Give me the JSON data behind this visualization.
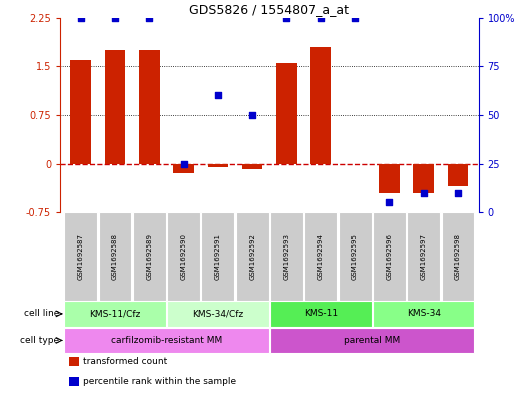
{
  "title": "GDS5826 / 1554807_a_at",
  "samples": [
    "GSM1692587",
    "GSM1692588",
    "GSM1692589",
    "GSM1692590",
    "GSM1692591",
    "GSM1692592",
    "GSM1692593",
    "GSM1692594",
    "GSM1692595",
    "GSM1692596",
    "GSM1692597",
    "GSM1692598"
  ],
  "transformed_count": [
    1.6,
    1.75,
    1.75,
    -0.15,
    -0.05,
    -0.08,
    1.55,
    1.8,
    0.0,
    -0.45,
    -0.45,
    -0.35
  ],
  "percentile_rank": [
    100,
    100,
    100,
    25,
    60,
    50,
    100,
    100,
    100,
    5,
    10,
    10
  ],
  "cell_line_groups": [
    {
      "label": "KMS-11/Cfz",
      "start": 0,
      "end": 3,
      "color": "#aaffaa"
    },
    {
      "label": "KMS-34/Cfz",
      "start": 3,
      "end": 6,
      "color": "#ccffcc"
    },
    {
      "label": "KMS-11",
      "start": 6,
      "end": 9,
      "color": "#55ee55"
    },
    {
      "label": "KMS-34",
      "start": 9,
      "end": 12,
      "color": "#88ff88"
    }
  ],
  "cell_type_groups": [
    {
      "label": "carfilzomib-resistant MM",
      "start": 0,
      "end": 6,
      "color": "#ee88ee"
    },
    {
      "label": "parental MM",
      "start": 6,
      "end": 12,
      "color": "#cc55cc"
    }
  ],
  "ylim_left": [
    -0.75,
    2.25
  ],
  "ylim_right": [
    0,
    100
  ],
  "yticks_left": [
    -0.75,
    0,
    0.75,
    1.5,
    2.25
  ],
  "yticks_right": [
    0,
    25,
    50,
    75,
    100
  ],
  "bar_color": "#cc2200",
  "dot_color": "#0000cc",
  "zero_line_color": "#cc0000",
  "grid_color": "#000000",
  "bg_color": "#ffffff",
  "sample_bg_color": "#cccccc",
  "legend_items": [
    {
      "label": "transformed count",
      "color": "#cc2200"
    },
    {
      "label": "percentile rank within the sample",
      "color": "#0000cc"
    }
  ]
}
